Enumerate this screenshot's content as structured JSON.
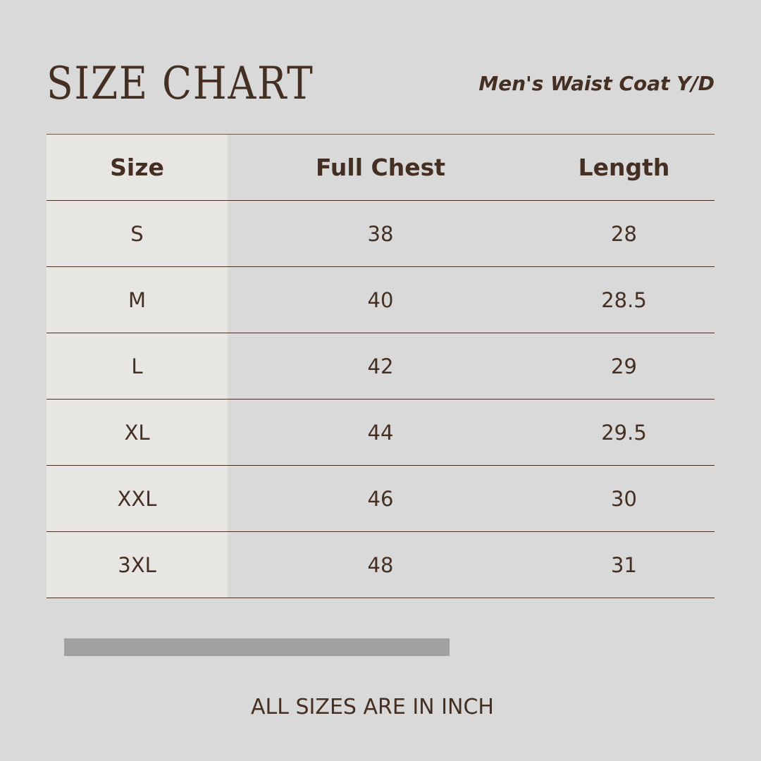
{
  "title": "SIZE CHART",
  "subtitle": "Men's Waist Coat Y/D",
  "table": {
    "headers": [
      "Size",
      "Full Chest",
      "Length"
    ],
    "rows": [
      [
        "S",
        "38",
        "28"
      ],
      [
        "M",
        "40",
        "28.5"
      ],
      [
        "L",
        "42",
        "29"
      ],
      [
        "XL",
        "44",
        "29.5"
      ],
      [
        "XXL",
        "46",
        "30"
      ],
      [
        "3XL",
        "48",
        "31"
      ]
    ]
  },
  "footer": "ALL SIZES ARE IN INCH",
  "colors": {
    "background": "#d9d9d9",
    "text": "#452f22",
    "first_column": "#e8e6e2",
    "bar": "#a0a0a0"
  }
}
